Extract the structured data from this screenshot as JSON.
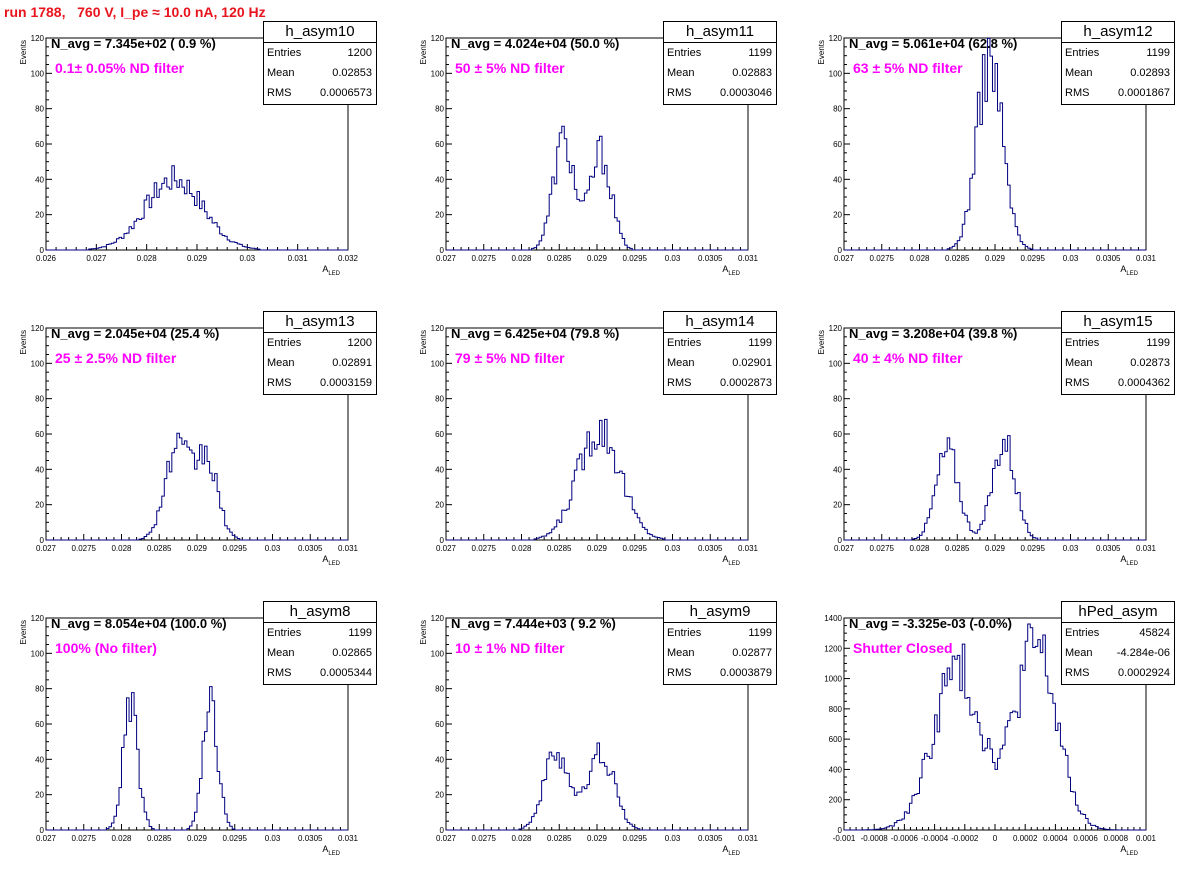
{
  "title": "run 1788,   760 V, I_pe ≈ 10.0 nA, 120 Hz",
  "colors": {
    "title": "#e8141e",
    "filter_label": "#ff00ff",
    "histogram": "#000080"
  },
  "chart_data": [
    {
      "type": "histogram",
      "name": "h_asym10",
      "n_avg_label": "N_avg = 7.345e+02 ( 0.9 %)",
      "filter_label": "0.1± 0.05% ND filter",
      "stats": [
        [
          "Entries",
          "1200"
        ],
        [
          "Mean",
          "0.02853"
        ],
        [
          "RMS",
          "0.0006573"
        ]
      ],
      "xlabel": "A",
      "xlabel_sub": "LED",
      "ylabel": "Events",
      "xlim": [
        0.026,
        0.032
      ],
      "ylim": [
        0,
        120
      ],
      "xticks": [
        "0.026",
        "0.027",
        "0.028",
        "0.029",
        "0.03",
        "0.031",
        "0.032"
      ],
      "yticks": [
        "0",
        "20",
        "40",
        "60",
        "80",
        "100",
        "120"
      ],
      "peaks": [
        [
          0.02855,
          0.00057,
          40
        ]
      ]
    },
    {
      "type": "histogram",
      "name": "h_asym11",
      "n_avg_label": "N_avg = 4.024e+04 (50.0 %)",
      "filter_label": "50 ± 5% ND filter",
      "stats": [
        [
          "Entries",
          "1199"
        ],
        [
          "Mean",
          "0.02883"
        ],
        [
          "RMS",
          "0.0003046"
        ]
      ],
      "xlabel": "A",
      "xlabel_sub": "LED",
      "ylabel": "Events",
      "xlim": [
        0.027,
        0.031
      ],
      "ylim": [
        0,
        120
      ],
      "xticks": [
        "0.027",
        "0.0275",
        "0.028",
        "0.0285",
        "0.029",
        "0.0295",
        "0.03",
        "0.0305",
        "0.031"
      ],
      "yticks": [
        "0",
        "20",
        "40",
        "60",
        "80",
        "100",
        "120"
      ],
      "peaks": [
        [
          0.02856,
          0.00014,
          62
        ],
        [
          0.02905,
          0.00014,
          55
        ]
      ]
    },
    {
      "type": "histogram",
      "name": "h_asym12",
      "n_avg_label": "N_avg = 5.061e+04 (62.8 %)",
      "filter_label": "63 ± 5% ND filter",
      "stats": [
        [
          "Entries",
          "1199"
        ],
        [
          "Mean",
          "0.02893"
        ],
        [
          "RMS",
          "0.0001867"
        ]
      ],
      "xlabel": "A",
      "xlabel_sub": "LED",
      "ylabel": "Events",
      "xlim": [
        0.027,
        0.031
      ],
      "ylim": [
        0,
        120
      ],
      "xticks": [
        "0.027",
        "0.0275",
        "0.028",
        "0.0285",
        "0.029",
        "0.0295",
        "0.03",
        "0.0305",
        "0.031"
      ],
      "yticks": [
        "0",
        "20",
        "40",
        "60",
        "80",
        "100",
        "120"
      ],
      "peaks": [
        [
          0.02893,
          0.00017,
          108
        ]
      ]
    },
    {
      "type": "histogram",
      "name": "h_asym13",
      "n_avg_label": "N_avg = 2.045e+04 (25.4 %)",
      "filter_label": "25 ± 2.5% ND filter",
      "stats": [
        [
          "Entries",
          "1200"
        ],
        [
          "Mean",
          "0.02891"
        ],
        [
          "RMS",
          "0.0003159"
        ]
      ],
      "xlabel": "A",
      "xlabel_sub": "LED",
      "ylabel": "Events",
      "xlim": [
        0.027,
        0.031
      ],
      "ylim": [
        0,
        120
      ],
      "xticks": [
        "0.027",
        "0.0275",
        "0.028",
        "0.0285",
        "0.029",
        "0.0295",
        "0.03",
        "0.0305",
        "0.031"
      ],
      "yticks": [
        "0",
        "20",
        "40",
        "60",
        "80",
        "100",
        "120"
      ],
      "peaks": [
        [
          0.02873,
          0.00016,
          50
        ],
        [
          0.02912,
          0.00015,
          46
        ]
      ]
    },
    {
      "type": "histogram",
      "name": "h_asym14",
      "n_avg_label": "N_avg = 6.425e+04 (79.8 %)",
      "filter_label": "79 ± 5% ND filter",
      "stats": [
        [
          "Entries",
          "1199"
        ],
        [
          "Mean",
          "0.02901"
        ],
        [
          "RMS",
          "0.0002873"
        ]
      ],
      "xlabel": "A",
      "xlabel_sub": "LED",
      "ylabel": "Events",
      "xlim": [
        0.027,
        0.031
      ],
      "ylim": [
        0,
        120
      ],
      "xticks": [
        "0.027",
        "0.0275",
        "0.028",
        "0.0285",
        "0.029",
        "0.0295",
        "0.03",
        "0.0305",
        "0.031"
      ],
      "yticks": [
        "0",
        "20",
        "40",
        "60",
        "80",
        "100",
        "120"
      ],
      "peaks": [
        [
          0.02903,
          0.00028,
          64
        ]
      ]
    },
    {
      "type": "histogram",
      "name": "h_asym15",
      "n_avg_label": "N_avg = 3.208e+04 (39.8 %)",
      "filter_label": "40 ± 4% ND filter",
      "stats": [
        [
          "Entries",
          "1199"
        ],
        [
          "Mean",
          "0.02873"
        ],
        [
          "RMS",
          "0.0004362"
        ]
      ],
      "xlabel": "A",
      "xlabel_sub": "LED",
      "ylabel": "Events",
      "xlim": [
        0.027,
        0.031
      ],
      "ylim": [
        0,
        120
      ],
      "xticks": [
        "0.027",
        "0.0275",
        "0.028",
        "0.0285",
        "0.029",
        "0.0295",
        "0.03",
        "0.0305",
        "0.031"
      ],
      "yticks": [
        "0",
        "20",
        "40",
        "60",
        "80",
        "100",
        "120"
      ],
      "peaks": [
        [
          0.02837,
          0.00015,
          50
        ],
        [
          0.02912,
          0.00015,
          56
        ]
      ]
    },
    {
      "type": "histogram",
      "name": "h_asym8",
      "n_avg_label": "N_avg = 8.054e+04 (100.0 %)",
      "filter_label": "100% (No filter)",
      "stats": [
        [
          "Entries",
          "1199"
        ],
        [
          "Mean",
          "0.02865"
        ],
        [
          "RMS",
          "0.0005344"
        ]
      ],
      "xlabel": "A",
      "xlabel_sub": "LED",
      "ylabel": "Events",
      "xlim": [
        0.027,
        0.031
      ],
      "ylim": [
        0,
        120
      ],
      "xticks": [
        "0.027",
        "0.0275",
        "0.028",
        "0.0285",
        "0.029",
        "0.0295",
        "0.03",
        "0.0305",
        "0.031"
      ],
      "yticks": [
        "0",
        "20",
        "40",
        "60",
        "80",
        "100",
        "120"
      ],
      "peaks": [
        [
          0.02812,
          0.0001,
          68
        ],
        [
          0.02918,
          0.0001,
          68
        ]
      ]
    },
    {
      "type": "histogram",
      "name": "h_asym9",
      "n_avg_label": "N_avg = 7.444e+03 ( 9.2 %)",
      "filter_label": "10 ± 1% ND filter",
      "stats": [
        [
          "Entries",
          "1199"
        ],
        [
          "Mean",
          "0.02877"
        ],
        [
          "RMS",
          "0.0003879"
        ]
      ],
      "xlabel": "A",
      "xlabel_sub": "LED",
      "ylabel": "Events",
      "xlim": [
        0.027,
        0.031
      ],
      "ylim": [
        0,
        120
      ],
      "xticks": [
        "0.027",
        "0.0275",
        "0.028",
        "0.0285",
        "0.029",
        "0.0295",
        "0.03",
        "0.0305",
        "0.031"
      ],
      "yticks": [
        "0",
        "20",
        "40",
        "60",
        "80",
        "100",
        "120"
      ],
      "peaks": [
        [
          0.02847,
          0.00017,
          44
        ],
        [
          0.02906,
          0.00017,
          44
        ]
      ]
    },
    {
      "type": "histogram",
      "name": "hPed_asym",
      "n_avg_label": "N_avg = -3.325e-03 (-0.0%)",
      "filter_label": "Shutter Closed",
      "stats": [
        [
          "Entries",
          "45824"
        ],
        [
          "Mean",
          "-4.284e-06"
        ],
        [
          "RMS",
          "0.0002924"
        ]
      ],
      "xlabel": "A",
      "xlabel_sub": "LED",
      "ylabel": "",
      "xlim": [
        -0.001,
        0.001
      ],
      "ylim": [
        0,
        1400
      ],
      "xticks": [
        "-0.001",
        "-0.0008",
        "-0.0006",
        "-0.0004",
        "-0.0002",
        "0",
        "0.0002",
        "0.0004",
        "0.0006",
        "0.0008",
        "0.001"
      ],
      "yticks": [
        "0",
        "200",
        "400",
        "600",
        "800",
        "1000",
        "1200",
        "1400"
      ],
      "peaks": [
        [
          -0.00025,
          0.00016,
          1060
        ],
        [
          0.00027,
          0.00014,
          1210
        ]
      ]
    }
  ]
}
